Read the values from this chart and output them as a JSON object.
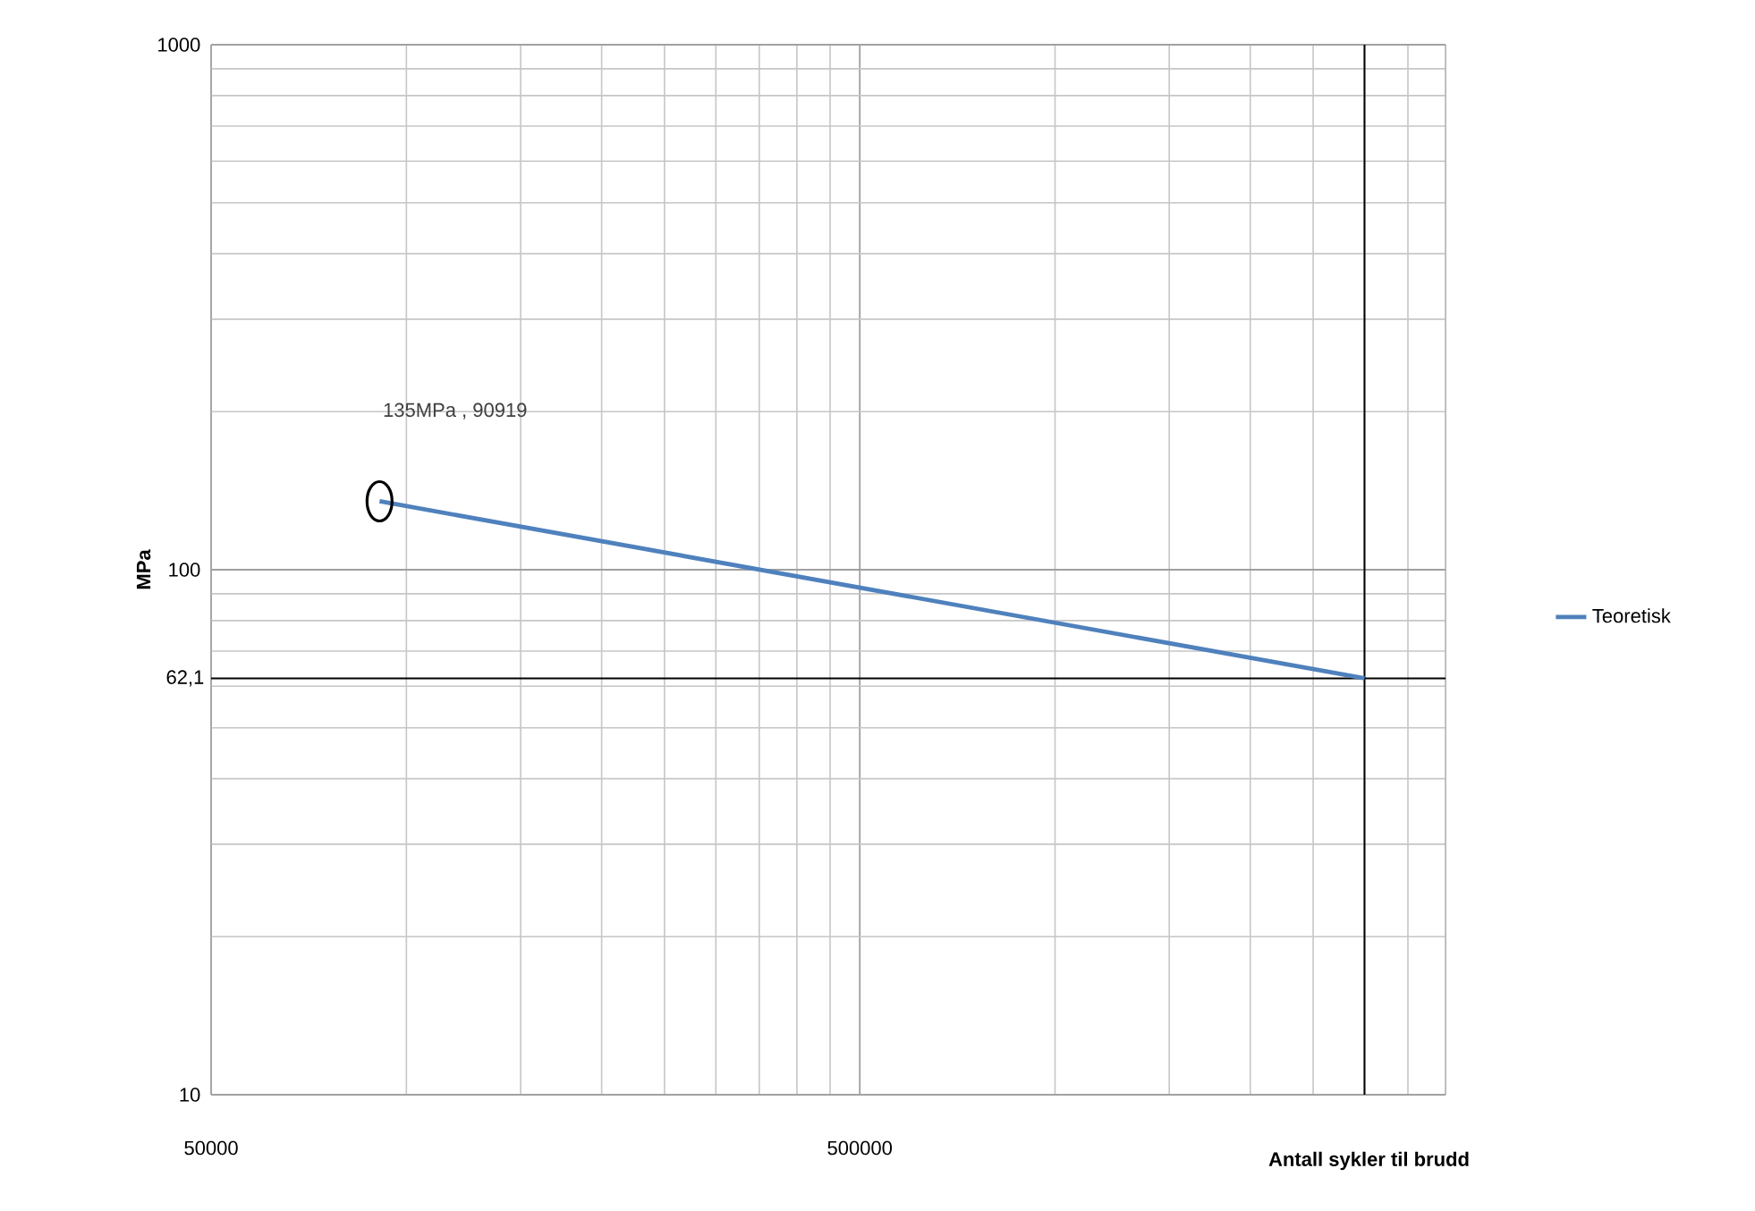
{
  "chart_data": {
    "type": "line",
    "xlabel": "Antall sykler til brudd",
    "ylabel": "MPa",
    "x": [
      90919,
      3000000
    ],
    "series": [
      {
        "name": "Teoretisk",
        "color": "#4f81bd",
        "values": [
          135,
          62.1
        ]
      }
    ],
    "xlim": [
      50000,
      4000000
    ],
    "ylim": [
      10,
      1000
    ],
    "xticks": [
      50000,
      500000
    ],
    "yticks": [
      10,
      100,
      1000
    ],
    "log": "xy",
    "grid": true,
    "legend": "right",
    "ref_lines": [
      {
        "axis": "y",
        "value": 62.1,
        "label": "62,1",
        "color": "#000000"
      },
      {
        "axis": "x",
        "value": 3000000,
        "color": "#000000"
      }
    ],
    "annotations": [
      "135MPa , 90919"
    ]
  }
}
